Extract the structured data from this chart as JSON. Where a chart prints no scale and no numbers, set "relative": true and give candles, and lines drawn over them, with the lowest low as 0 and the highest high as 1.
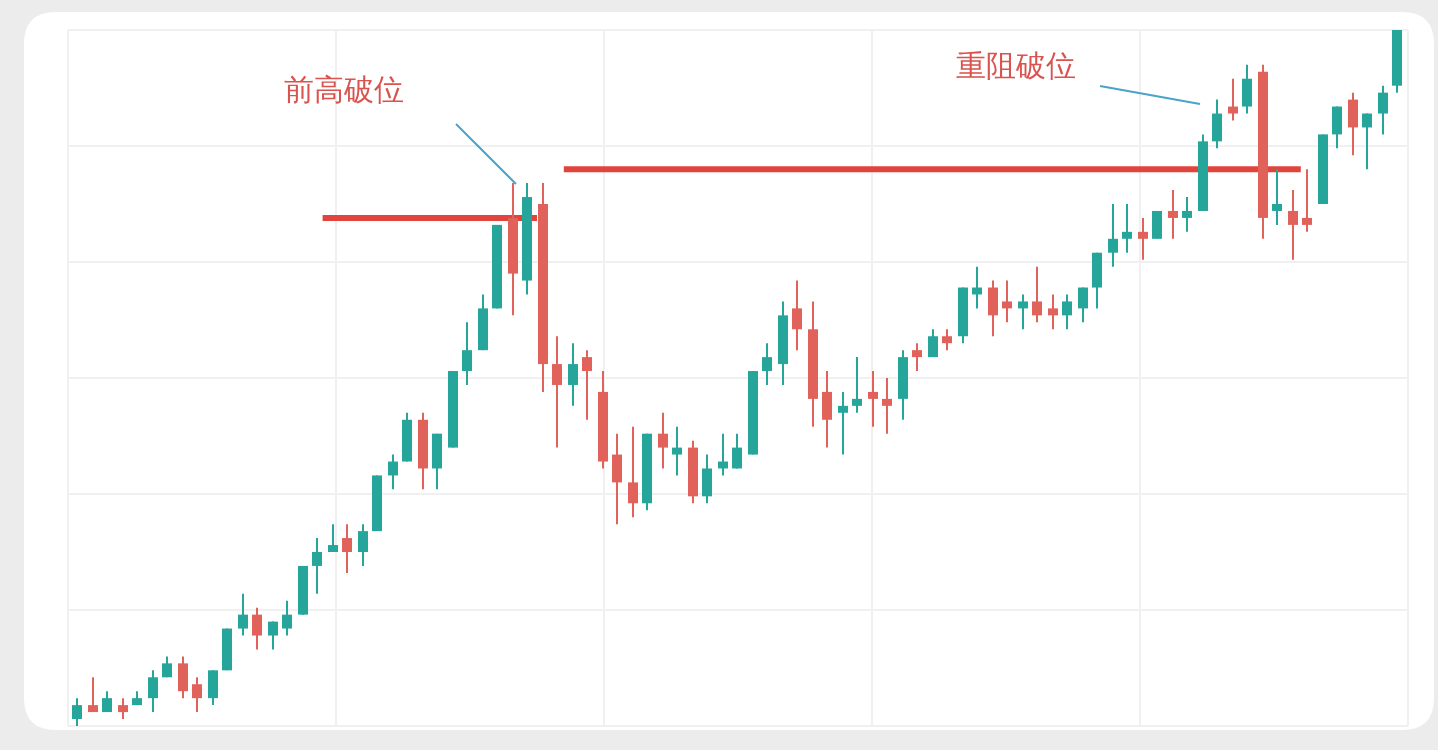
{
  "chart_data": {
    "type": "candlestick",
    "relative": true,
    "grid": true,
    "categories": [
      null,
      null,
      null,
      null,
      null,
      null,
      null,
      null,
      null,
      null,
      null,
      null,
      null,
      null,
      null,
      null,
      null,
      null,
      null,
      null,
      null,
      null,
      null,
      null,
      null,
      null,
      null,
      null,
      null,
      null,
      null,
      null,
      null,
      null,
      null,
      null,
      null,
      null,
      null,
      null,
      null,
      null,
      null,
      null,
      null,
      null,
      null,
      null,
      null,
      null,
      null,
      null,
      null,
      null,
      null,
      null,
      null,
      null,
      null,
      null,
      null,
      null,
      null,
      null,
      null,
      null,
      null,
      null,
      null,
      null,
      null,
      null,
      null,
      null,
      null,
      null,
      null,
      null,
      null,
      null,
      null,
      null,
      null,
      null,
      null,
      null,
      null,
      null,
      null
    ],
    "ohlc": [
      [
        0.01,
        0.04,
        0,
        0.03
      ],
      [
        0.03,
        0.07,
        0.02,
        0.02
      ],
      [
        0.02,
        0.05,
        0.02,
        0.04
      ],
      [
        0.03,
        0.04,
        0.01,
        0.02
      ],
      [
        0.03,
        0.05,
        0.03,
        0.04
      ],
      [
        0.04,
        0.08,
        0.02,
        0.07
      ],
      [
        0.07,
        0.1,
        0.07,
        0.09
      ],
      [
        0.09,
        0.1,
        0.04,
        0.05
      ],
      [
        0.06,
        0.07,
        0.02,
        0.04
      ],
      [
        0.04,
        0.08,
        0.03,
        0.08
      ],
      [
        0.08,
        0.14,
        0.08,
        0.14
      ],
      [
        0.14,
        0.19,
        0.13,
        0.16
      ],
      [
        0.16,
        0.17,
        0.11,
        0.13
      ],
      [
        0.13,
        0.15,
        0.11,
        0.15
      ],
      [
        0.14,
        0.18,
        0.13,
        0.16
      ],
      [
        0.16,
        0.23,
        0.16,
        0.23
      ],
      [
        0.23,
        0.27,
        0.19,
        0.25
      ],
      [
        0.25,
        0.29,
        0.25,
        0.26
      ],
      [
        0.27,
        0.29,
        0.22,
        0.25
      ],
      [
        0.25,
        0.29,
        0.23,
        0.28
      ],
      [
        0.28,
        0.36,
        0.28,
        0.36
      ],
      [
        0.36,
        0.39,
        0.34,
        0.38
      ],
      [
        0.38,
        0.45,
        0.38,
        0.44
      ],
      [
        0.44,
        0.45,
        0.34,
        0.37
      ],
      [
        0.37,
        0.42,
        0.34,
        0.42
      ],
      [
        0.4,
        0.51,
        0.4,
        0.51
      ],
      [
        0.51,
        0.58,
        0.49,
        0.54
      ],
      [
        0.54,
        0.62,
        0.54,
        0.6
      ],
      [
        0.6,
        0.72,
        0.6,
        0.72
      ],
      [
        0.73,
        0.78,
        0.59,
        0.65
      ],
      [
        0.64,
        0.78,
        0.62,
        0.76
      ],
      [
        0.75,
        0.78,
        0.48,
        0.52
      ],
      [
        0.52,
        0.56,
        0.4,
        0.49
      ],
      [
        0.49,
        0.55,
        0.46,
        0.52
      ],
      [
        0.53,
        0.54,
        0.44,
        0.51
      ],
      [
        0.48,
        0.51,
        0.37,
        0.38
      ],
      [
        0.39,
        0.42,
        0.29,
        0.35
      ],
      [
        0.35,
        0.43,
        0.3,
        0.32
      ],
      [
        0.32,
        0.42,
        0.31,
        0.42
      ],
      [
        0.42,
        0.45,
        0.37,
        0.4
      ],
      [
        0.39,
        0.43,
        0.36,
        0.4
      ],
      [
        0.4,
        0.41,
        0.32,
        0.33
      ],
      [
        0.33,
        0.39,
        0.32,
        0.37
      ],
      [
        0.37,
        0.42,
        0.36,
        0.38
      ],
      [
        0.37,
        0.42,
        0.37,
        0.4
      ],
      [
        0.39,
        0.51,
        0.39,
        0.51
      ],
      [
        0.51,
        0.55,
        0.49,
        0.53
      ],
      [
        0.52,
        0.61,
        0.49,
        0.59
      ],
      [
        0.6,
        0.64,
        0.54,
        0.57
      ],
      [
        0.57,
        0.61,
        0.43,
        0.47
      ],
      [
        0.48,
        0.51,
        0.4,
        0.44
      ],
      [
        0.45,
        0.48,
        0.39,
        0.46
      ],
      [
        0.46,
        0.53,
        0.45,
        0.47
      ],
      [
        0.48,
        0.51,
        0.43,
        0.47
      ],
      [
        0.47,
        0.5,
        0.42,
        0.46
      ],
      [
        0.47,
        0.54,
        0.44,
        0.53
      ],
      [
        0.54,
        0.55,
        0.51,
        0.53
      ],
      [
        0.53,
        0.57,
        0.53,
        0.56
      ],
      [
        0.56,
        0.57,
        0.54,
        0.55
      ],
      [
        0.56,
        0.63,
        0.55,
        0.63
      ],
      [
        0.62,
        0.66,
        0.6,
        0.63
      ],
      [
        0.63,
        0.64,
        0.56,
        0.59
      ],
      [
        0.61,
        0.64,
        0.58,
        0.6
      ],
      [
        0.6,
        0.62,
        0.57,
        0.61
      ],
      [
        0.61,
        0.66,
        0.58,
        0.59
      ],
      [
        0.6,
        0.62,
        0.57,
        0.59
      ],
      [
        0.59,
        0.62,
        0.57,
        0.61
      ],
      [
        0.6,
        0.63,
        0.58,
        0.63
      ],
      [
        0.63,
        0.68,
        0.6,
        0.68
      ],
      [
        0.68,
        0.75,
        0.66,
        0.7
      ],
      [
        0.7,
        0.75,
        0.68,
        0.71
      ],
      [
        0.71,
        0.73,
        0.67,
        0.7
      ],
      [
        0.7,
        0.74,
        0.7,
        0.74
      ],
      [
        0.74,
        0.77,
        0.7,
        0.73
      ],
      [
        0.73,
        0.76,
        0.71,
        0.74
      ],
      [
        0.74,
        0.85,
        0.74,
        0.84
      ],
      [
        0.84,
        0.9,
        0.83,
        0.88
      ],
      [
        0.89,
        0.93,
        0.87,
        0.88
      ],
      [
        0.89,
        0.95,
        0.88,
        0.93
      ],
      [
        0.94,
        0.95,
        0.7,
        0.73
      ],
      [
        0.74,
        0.8,
        0.72,
        0.75
      ],
      [
        0.74,
        0.77,
        0.67,
        0.72
      ],
      [
        0.73,
        0.8,
        0.71,
        0.72
      ],
      [
        0.75,
        0.85,
        0.75,
        0.85
      ],
      [
        0.85,
        0.89,
        0.83,
        0.89
      ],
      [
        0.9,
        0.91,
        0.82,
        0.86
      ],
      [
        0.86,
        0.88,
        0.8,
        0.88
      ],
      [
        0.88,
        0.92,
        0.85,
        0.91
      ],
      [
        0.92,
        1,
        0.91,
        1
      ]
    ],
    "colors": [
      "#26a69a",
      "#e0625a",
      "#26a69a",
      "#e0625a",
      "#26a69a",
      "#26a69a",
      "#26a69a",
      "#e0625a",
      "#e0625a",
      "#26a69a",
      "#26a69a",
      "#26a69a",
      "#e0625a",
      "#26a69a",
      "#26a69a",
      "#26a69a",
      "#26a69a",
      "#26a69a",
      "#e0625a",
      "#26a69a",
      "#26a69a",
      "#26a69a",
      "#26a69a",
      "#e0625a",
      "#26a69a",
      "#26a69a",
      "#26a69a",
      "#26a69a",
      "#26a69a",
      "#e0625a",
      "#26a69a",
      "#e0625a",
      "#e0625a",
      "#26a69a",
      "#e0625a",
      "#e0625a",
      "#e0625a",
      "#e0625a",
      "#26a69a",
      "#e0625a",
      "#26a69a",
      "#e0625a",
      "#26a69a",
      "#26a69a",
      "#26a69a",
      "#26a69a",
      "#26a69a",
      "#26a69a",
      "#e0625a",
      "#e0625a",
      "#e0625a",
      "#26a69a",
      "#26a69a",
      "#e0625a",
      "#e0625a",
      "#26a69a",
      "#e0625a",
      "#26a69a",
      "#e0625a",
      "#26a69a",
      "#26a69a",
      "#e0625a",
      "#e0625a",
      "#26a69a",
      "#e0625a",
      "#e0625a",
      "#26a69a",
      "#26a69a",
      "#26a69a",
      "#26a69a",
      "#26a69a",
      "#e0625a",
      "#26a69a",
      "#e0625a",
      "#26a69a",
      "#26a69a",
      "#26a69a",
      "#e0625a",
      "#26a69a",
      "#e0625a",
      "#26a69a",
      "#e0625a",
      "#e0625a",
      "#26a69a",
      "#26a69a",
      "#e0625a",
      "#26a69a",
      "#26a69a",
      "#26a69a"
    ],
    "ref_lines": [
      {
        "axis": "y",
        "value": 0.73,
        "color": "#e0443c"
      },
      {
        "axis": "y",
        "value": 0.8,
        "color": "#e0443c"
      }
    ],
    "annotations": [
      "前高破位",
      "重阻破位"
    ]
  }
}
